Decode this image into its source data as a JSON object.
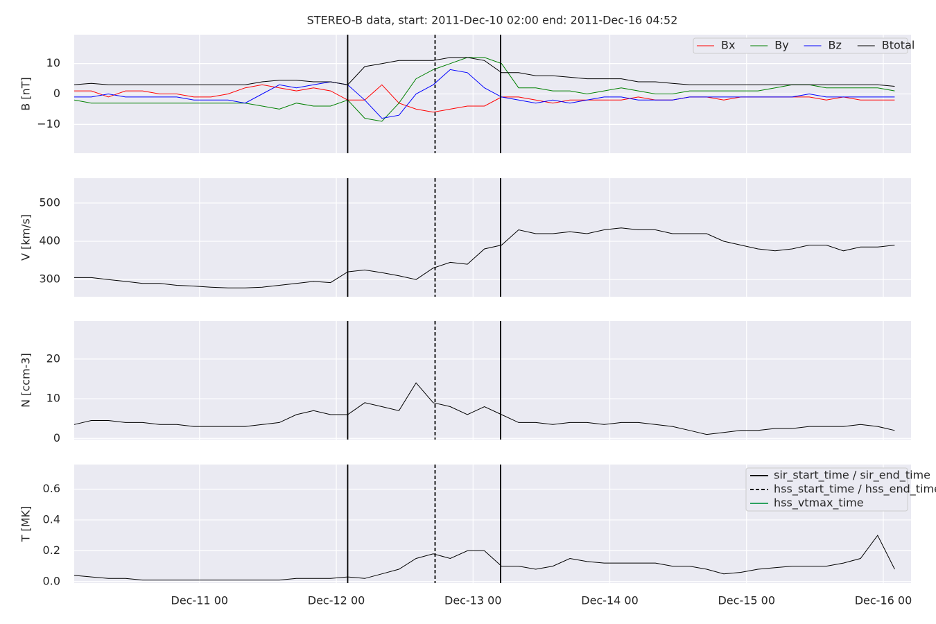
{
  "chart_data": [
    {
      "type": "line",
      "title": "STEREO-B data, start: 2011-Dec-10 02:00  end: 2011-Dec-16 04:52",
      "ylabel": "B [nT]",
      "x": [
        "2011-12-10 02:00",
        "2011-12-10 05:00",
        "2011-12-10 08:00",
        "2011-12-10 11:00",
        "2011-12-10 14:00",
        "2011-12-10 17:00",
        "2011-12-10 20:00",
        "2011-12-10 23:00",
        "2011-12-11 02:00",
        "2011-12-11 05:00",
        "2011-12-11 08:00",
        "2011-12-11 11:00",
        "2011-12-11 14:00",
        "2011-12-11 17:00",
        "2011-12-11 20:00",
        "2011-12-11 23:00",
        "2011-12-12 02:00",
        "2011-12-12 05:00",
        "2011-12-12 08:00",
        "2011-12-12 11:00",
        "2011-12-12 14:00",
        "2011-12-12 17:00",
        "2011-12-12 20:00",
        "2011-12-12 23:00",
        "2011-12-13 02:00",
        "2011-12-13 05:00",
        "2011-12-13 08:00",
        "2011-12-13 11:00",
        "2011-12-13 14:00",
        "2011-12-13 17:00",
        "2011-12-13 20:00",
        "2011-12-13 23:00",
        "2011-12-14 02:00",
        "2011-12-14 05:00",
        "2011-12-14 08:00",
        "2011-12-14 11:00",
        "2011-12-14 14:00",
        "2011-12-14 17:00",
        "2011-12-14 20:00",
        "2011-12-14 23:00",
        "2011-12-15 02:00",
        "2011-12-15 05:00",
        "2011-12-15 08:00",
        "2011-12-15 11:00",
        "2011-12-15 14:00",
        "2011-12-15 17:00",
        "2011-12-15 20:00",
        "2011-12-15 23:00",
        "2011-12-16 02:00"
      ],
      "series": [
        {
          "name": "Bx",
          "color": "#ff0000",
          "values": [
            1,
            1,
            -1,
            1,
            1,
            0,
            0,
            -1,
            -1,
            0,
            2,
            3,
            2,
            1,
            2,
            1,
            -2,
            -2,
            3,
            -3,
            -5,
            -6,
            -5,
            -4,
            -4,
            -1,
            -1,
            -2,
            -3,
            -2,
            -2,
            -2,
            -2,
            -1,
            -2,
            -2,
            -1,
            -1,
            -2,
            -1,
            -1,
            -1,
            -1,
            -1,
            -2,
            -1,
            -2,
            -2,
            -2
          ]
        },
        {
          "name": "By",
          "color": "#008000",
          "values": [
            -2,
            -3,
            -3,
            -3,
            -3,
            -3,
            -3,
            -3,
            -3,
            -3,
            -3,
            -4,
            -5,
            -3,
            -4,
            -4,
            -2,
            -8,
            -9,
            -3,
            5,
            8,
            10,
            12,
            12,
            10,
            2,
            2,
            1,
            1,
            0,
            1,
            2,
            1,
            0,
            0,
            1,
            1,
            1,
            1,
            1,
            2,
            3,
            3,
            2,
            2,
            2,
            2,
            1
          ]
        },
        {
          "name": "Bz",
          "color": "#0000ff",
          "values": [
            -1,
            -1,
            0,
            -1,
            -1,
            -1,
            -1,
            -2,
            -2,
            -2,
            -3,
            0,
            3,
            2,
            3,
            4,
            3,
            -2,
            -8,
            -7,
            0,
            3,
            8,
            7,
            2,
            -1,
            -2,
            -3,
            -2,
            -3,
            -2,
            -1,
            -1,
            -2,
            -2,
            -2,
            -1,
            -1,
            -1,
            -1,
            -1,
            -1,
            -1,
            0,
            -1,
            -1,
            -1,
            -1,
            -1
          ]
        },
        {
          "name": "Btotal",
          "color": "#000000",
          "values": [
            3,
            3.5,
            3,
            3,
            3,
            3,
            3,
            3,
            3,
            3,
            3,
            4,
            4.5,
            4.5,
            4,
            4,
            3,
            9,
            10,
            11,
            11,
            11,
            12,
            12,
            11,
            7,
            7,
            6,
            6,
            5.5,
            5,
            5,
            5,
            4,
            4,
            3.5,
            3,
            3,
            3,
            3,
            3,
            3,
            3,
            3,
            3,
            3,
            3,
            3,
            2.5
          ]
        }
      ],
      "ylim": [
        -19.5,
        19.5
      ],
      "yticks": [
        {
          "value": -10,
          "label": "−10"
        },
        0,
        10
      ],
      "grid": true,
      "legend": "upper right"
    },
    {
      "type": "line",
      "ylabel": "V [km/s]",
      "x": [
        "2011-12-10 02:00",
        "2011-12-10 05:00",
        "2011-12-10 08:00",
        "2011-12-10 11:00",
        "2011-12-10 14:00",
        "2011-12-10 17:00",
        "2011-12-10 20:00",
        "2011-12-10 23:00",
        "2011-12-11 02:00",
        "2011-12-11 05:00",
        "2011-12-11 08:00",
        "2011-12-11 11:00",
        "2011-12-11 14:00",
        "2011-12-11 17:00",
        "2011-12-11 20:00",
        "2011-12-11 23:00",
        "2011-12-12 02:00",
        "2011-12-12 05:00",
        "2011-12-12 08:00",
        "2011-12-12 11:00",
        "2011-12-12 14:00",
        "2011-12-12 17:00",
        "2011-12-12 20:00",
        "2011-12-12 23:00",
        "2011-12-13 02:00",
        "2011-12-13 05:00",
        "2011-12-13 08:00",
        "2011-12-13 11:00",
        "2011-12-13 14:00",
        "2011-12-13 17:00",
        "2011-12-13 20:00",
        "2011-12-13 23:00",
        "2011-12-14 02:00",
        "2011-12-14 05:00",
        "2011-12-14 08:00",
        "2011-12-14 11:00",
        "2011-12-14 14:00",
        "2011-12-14 17:00",
        "2011-12-14 20:00",
        "2011-12-14 23:00",
        "2011-12-15 02:00",
        "2011-12-15 05:00",
        "2011-12-15 08:00",
        "2011-12-15 11:00",
        "2011-12-15 14:00",
        "2011-12-15 17:00",
        "2011-12-15 20:00",
        "2011-12-15 23:00",
        "2011-12-16 02:00"
      ],
      "series": [
        {
          "color": "#000000",
          "values": [
            305,
            305,
            300,
            295,
            290,
            290,
            285,
            283,
            280,
            278,
            278,
            280,
            285,
            290,
            295,
            292,
            320,
            325,
            318,
            310,
            300,
            330,
            345,
            340,
            380,
            390,
            430,
            420,
            420,
            425,
            420,
            430,
            435,
            430,
            430,
            420,
            420,
            420,
            400,
            390,
            380,
            375,
            380,
            390,
            390,
            375,
            385,
            385,
            390
          ]
        }
      ],
      "ylim": [
        255,
        565
      ],
      "yticks": [
        300,
        400,
        500
      ],
      "grid": true
    },
    {
      "type": "line",
      "ylabel": "N [ccm-3]",
      "x": [
        "2011-12-10 02:00",
        "2011-12-10 05:00",
        "2011-12-10 08:00",
        "2011-12-10 11:00",
        "2011-12-10 14:00",
        "2011-12-10 17:00",
        "2011-12-10 20:00",
        "2011-12-10 23:00",
        "2011-12-11 02:00",
        "2011-12-11 05:00",
        "2011-12-11 08:00",
        "2011-12-11 11:00",
        "2011-12-11 14:00",
        "2011-12-11 17:00",
        "2011-12-11 20:00",
        "2011-12-11 23:00",
        "2011-12-12 02:00",
        "2011-12-12 05:00",
        "2011-12-12 08:00",
        "2011-12-12 11:00",
        "2011-12-12 14:00",
        "2011-12-12 17:00",
        "2011-12-12 20:00",
        "2011-12-12 23:00",
        "2011-12-13 02:00",
        "2011-12-13 05:00",
        "2011-12-13 08:00",
        "2011-12-13 11:00",
        "2011-12-13 14:00",
        "2011-12-13 17:00",
        "2011-12-13 20:00",
        "2011-12-13 23:00",
        "2011-12-14 02:00",
        "2011-12-14 05:00",
        "2011-12-14 08:00",
        "2011-12-14 11:00",
        "2011-12-14 14:00",
        "2011-12-14 17:00",
        "2011-12-14 20:00",
        "2011-12-14 23:00",
        "2011-12-15 02:00",
        "2011-12-15 05:00",
        "2011-12-15 08:00",
        "2011-12-15 11:00",
        "2011-12-15 14:00",
        "2011-12-15 17:00",
        "2011-12-15 20:00",
        "2011-12-15 23:00",
        "2011-12-16 02:00"
      ],
      "series": [
        {
          "color": "#000000",
          "values": [
            3.5,
            4.5,
            4.5,
            4,
            4,
            3.5,
            3.5,
            3,
            3,
            3,
            3,
            3.5,
            4,
            6,
            7,
            6,
            6,
            9,
            8,
            7,
            14,
            9,
            8,
            6,
            8,
            6,
            4,
            4,
            3.5,
            4,
            4,
            3.5,
            4,
            4,
            3.5,
            3,
            2,
            1,
            1.5,
            2,
            2,
            2.5,
            2.5,
            3,
            3,
            3,
            3.5,
            3,
            2
          ]
        }
      ],
      "ylim": [
        -0.3,
        29.6
      ],
      "yticks": [
        0,
        10,
        20
      ],
      "grid": true
    },
    {
      "type": "line",
      "ylabel": "T [MK]",
      "x": [
        "2011-12-10 02:00",
        "2011-12-10 05:00",
        "2011-12-10 08:00",
        "2011-12-10 11:00",
        "2011-12-10 14:00",
        "2011-12-10 17:00",
        "2011-12-10 20:00",
        "2011-12-10 23:00",
        "2011-12-11 02:00",
        "2011-12-11 05:00",
        "2011-12-11 08:00",
        "2011-12-11 11:00",
        "2011-12-11 14:00",
        "2011-12-11 17:00",
        "2011-12-11 20:00",
        "2011-12-11 23:00",
        "2011-12-12 02:00",
        "2011-12-12 05:00",
        "2011-12-12 08:00",
        "2011-12-12 11:00",
        "2011-12-12 14:00",
        "2011-12-12 17:00",
        "2011-12-12 20:00",
        "2011-12-12 23:00",
        "2011-12-13 02:00",
        "2011-12-13 05:00",
        "2011-12-13 08:00",
        "2011-12-13 11:00",
        "2011-12-13 14:00",
        "2011-12-13 17:00",
        "2011-12-13 20:00",
        "2011-12-13 23:00",
        "2011-12-14 02:00",
        "2011-12-14 05:00",
        "2011-12-14 08:00",
        "2011-12-14 11:00",
        "2011-12-14 14:00",
        "2011-12-14 17:00",
        "2011-12-14 20:00",
        "2011-12-14 23:00",
        "2011-12-15 02:00",
        "2011-12-15 05:00",
        "2011-12-15 08:00",
        "2011-12-15 11:00",
        "2011-12-15 14:00",
        "2011-12-15 17:00",
        "2011-12-15 20:00",
        "2011-12-15 23:00",
        "2011-12-16 02:00"
      ],
      "series": [
        {
          "color": "#000000",
          "values": [
            0.04,
            0.03,
            0.02,
            0.02,
            0.01,
            0.01,
            0.01,
            0.01,
            0.01,
            0.01,
            0.01,
            0.01,
            0.01,
            0.02,
            0.02,
            0.02,
            0.03,
            0.02,
            0.05,
            0.08,
            0.15,
            0.18,
            0.15,
            0.2,
            0.2,
            0.1,
            0.1,
            0.08,
            0.1,
            0.15,
            0.13,
            0.12,
            0.12,
            0.12,
            0.12,
            0.1,
            0.1,
            0.08,
            0.05,
            0.06,
            0.08,
            0.09,
            0.1,
            0.1,
            0.1,
            0.12,
            0.15,
            0.3,
            0.08
          ]
        }
      ],
      "ylim": [
        -0.01,
        0.76
      ],
      "yticks": [
        {
          "value": 0,
          "label": "0.0"
        },
        0.2,
        0.4,
        0.6
      ],
      "grid": true,
      "xlim": [
        "2011-12-10 02:00",
        "2011-12-16 04:52"
      ],
      "xticks": [
        {
          "value": "2011-12-11 00:00",
          "label": "Dec-11 00"
        },
        {
          "value": "2011-12-12 00:00",
          "label": "Dec-12 00"
        },
        {
          "value": "2011-12-13 00:00",
          "label": "Dec-13 00"
        },
        {
          "value": "2011-12-14 00:00",
          "label": "Dec-14 00"
        },
        {
          "value": "2011-12-15 00:00",
          "label": "Dec-15 00"
        },
        {
          "value": "2011-12-16 00:00",
          "label": "Dec-16 00"
        }
      ],
      "legend": "upper right",
      "markers": [
        {
          "name": "sir_start_time / sir_end_time",
          "color": "#000000",
          "style": "solid",
          "x": [
            "2011-12-12 02:00",
            "2011-12-13 04:50"
          ]
        },
        {
          "name": "hss_start_time / hss_end_time",
          "color": "#000000",
          "style": "dashed",
          "x": [
            "2011-12-12 17:20"
          ]
        },
        {
          "name": "hss_vtmax_time",
          "color": "#2ca25f",
          "style": "solid",
          "x": []
        }
      ]
    }
  ]
}
